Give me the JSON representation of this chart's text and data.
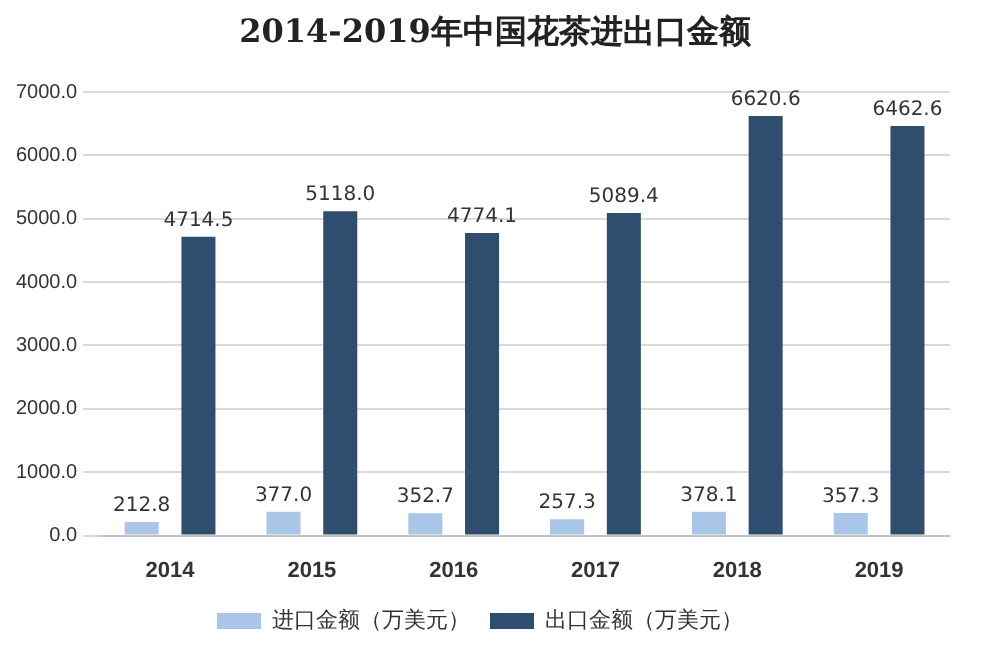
{
  "chart_data": {
    "type": "bar",
    "title": "2014-2019年中国花茶进出口金额",
    "categories": [
      "2014",
      "2015",
      "2016",
      "2017",
      "2018",
      "2019"
    ],
    "series": [
      {
        "name": "进口金额（万美元）",
        "color": "#a9c6e8",
        "values": [
          212.8,
          377.0,
          352.7,
          257.3,
          378.1,
          357.3
        ],
        "value_labels": [
          "212.8",
          "377.0",
          "352.7",
          "257.3",
          "378.1",
          "357.3"
        ]
      },
      {
        "name": "出口金额（万美元）",
        "color": "#2f4d6e",
        "values": [
          4714.5,
          5118.0,
          4774.1,
          5089.4,
          6620.6,
          6462.6
        ],
        "value_labels": [
          "4714.5",
          "5118.0",
          "4774.1",
          "5089.4",
          "6620.6",
          "6462.6"
        ]
      }
    ],
    "ylim": [
      0,
      7000
    ],
    "yticks": [
      {
        "value": 0,
        "label": "0.0"
      },
      {
        "value": 1000,
        "label": "1000.0"
      },
      {
        "value": 2000,
        "label": "2000.0"
      },
      {
        "value": 3000,
        "label": "3000.0"
      },
      {
        "value": 4000,
        "label": "4000.0"
      },
      {
        "value": 5000,
        "label": "5000.0"
      },
      {
        "value": 6000,
        "label": "6000.0"
      },
      {
        "value": 7000,
        "label": "7000.0"
      }
    ],
    "grid": "y",
    "legend": "bottom"
  }
}
